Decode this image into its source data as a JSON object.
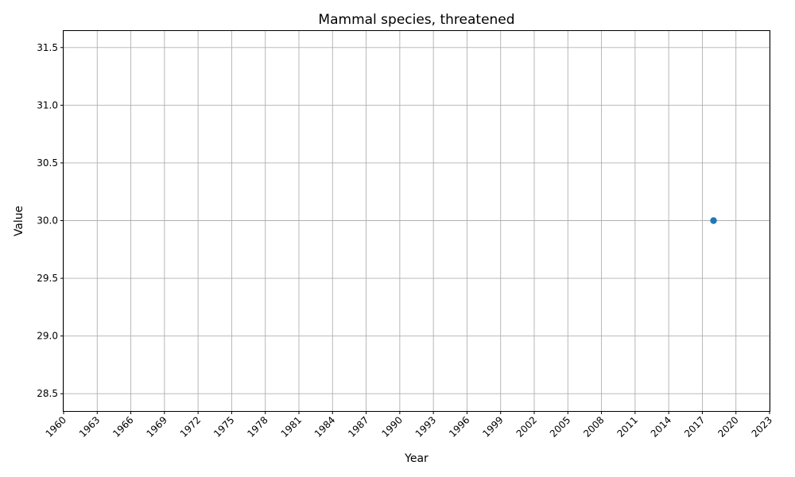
{
  "chart_data": {
    "type": "line",
    "title": "Mammal species, threatened",
    "xlabel": "Year",
    "ylabel": "Value",
    "xlim": [
      1960,
      2023
    ],
    "ylim": [
      28.35,
      31.65
    ],
    "x_ticks": [
      1960,
      1963,
      1966,
      1969,
      1972,
      1975,
      1978,
      1981,
      1984,
      1987,
      1990,
      1993,
      1996,
      1999,
      2002,
      2005,
      2008,
      2011,
      2014,
      2017,
      2020,
      2023
    ],
    "y_ticks": [
      "28.5",
      "29.0",
      "29.5",
      "30.0",
      "30.5",
      "31.0",
      "31.5"
    ],
    "grid": true,
    "series": [
      {
        "color": "#1f77b4",
        "marker": "circle",
        "points": [
          {
            "x": 2018,
            "y": 30.0
          }
        ]
      }
    ]
  }
}
